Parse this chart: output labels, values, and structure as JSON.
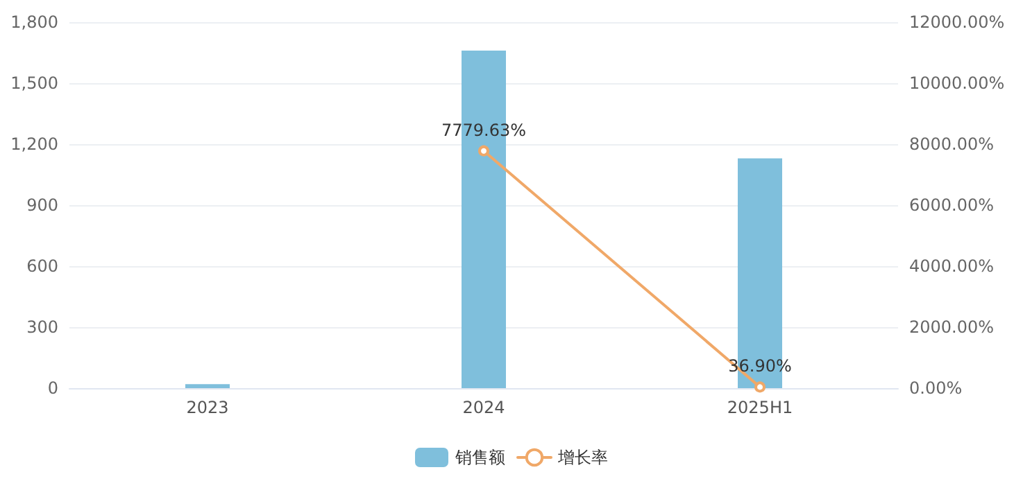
{
  "chart_data": {
    "type": "bar",
    "categories": [
      "2023",
      "2024",
      "2025H1"
    ],
    "series": [
      {
        "name": "销售额",
        "color": "#7fbfdc",
        "values": [
          20,
          1660,
          1130
        ]
      },
      {
        "name": "增长率",
        "type": "line",
        "axis": "y2",
        "color": "#f0a868",
        "values": [
          null,
          7779.63,
          36.9
        ],
        "value_labels": [
          null,
          "7779.63%",
          "36.90%"
        ]
      }
    ],
    "ylim": [
      0,
      1800
    ],
    "yticks": [
      {
        "value": 0,
        "label": "0"
      },
      {
        "value": 300,
        "label": "300"
      },
      {
        "value": 600,
        "label": "600"
      },
      {
        "value": 900,
        "label": "900"
      },
      {
        "value": 1200,
        "label": "1,200"
      },
      {
        "value": 1500,
        "label": "1,500"
      },
      {
        "value": 1800,
        "label": "1,800"
      }
    ],
    "y2lim": [
      0,
      12000
    ],
    "y2ticks": [
      {
        "value": 0,
        "label": "0.00%"
      },
      {
        "value": 2000,
        "label": "2000.00%"
      },
      {
        "value": 4000,
        "label": "4000.00%"
      },
      {
        "value": 6000,
        "label": "6000.00%"
      },
      {
        "value": 8000,
        "label": "8000.00%"
      },
      {
        "value": 10000,
        "label": "10000.00%"
      },
      {
        "value": 12000,
        "label": "12000.00%"
      }
    ],
    "grid": "y",
    "legend": "bottom",
    "marker": "circle",
    "line_style": "solid"
  }
}
